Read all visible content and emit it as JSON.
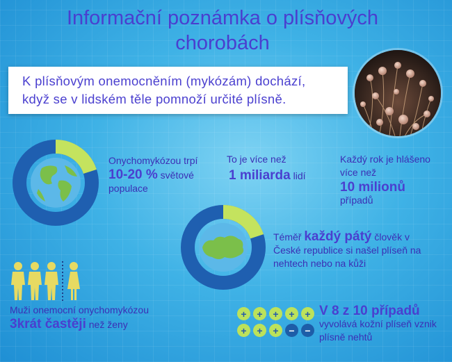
{
  "title": "Informační poznámka o plísňových chorobách",
  "intro": {
    "line1": "K plísňovým onemocněním (mykózám) dochází,",
    "line2": "když se v lidském těle pomnoží určité plísně."
  },
  "stat_world": {
    "text1": "Onychomykózou trpí",
    "highlight": "10-20 %",
    "text2": " světové",
    "text3": "populace",
    "share_fraction": 0.15
  },
  "stat_billion": {
    "text1": "To je více než",
    "highlight": "1 miliarda",
    "text2": " lidí"
  },
  "stat_yearly": {
    "text1": "Každý rok je hlášeno",
    "text2": "více než",
    "highlight": "10 milionů",
    "text3": "případů"
  },
  "stat_czech": {
    "text1": "Téměř ",
    "highlight": "každý pátý",
    "text2": " člověk v",
    "text3": "České republice si našel plíseň na",
    "text4": "nehtech nebo na kůži",
    "share_fraction": 0.2
  },
  "stat_gender": {
    "text1": "Muži onemocní onychomykózou",
    "highlight": "3krát častěji",
    "text2": " než ženy",
    "men_count": 3,
    "women_count": 1
  },
  "stat_skin": {
    "highlight": "V 8 z 10 případů",
    "text1": "vyvolává kožní plíseň vznik",
    "text2": "plísně nehtů",
    "positive": 8,
    "total": 10
  },
  "colors": {
    "ring_blue": "#1f5fb0",
    "ring_green": "#c4e35e",
    "title_purple": "#4a3fcf",
    "figure_yellow": "#e7da62"
  }
}
